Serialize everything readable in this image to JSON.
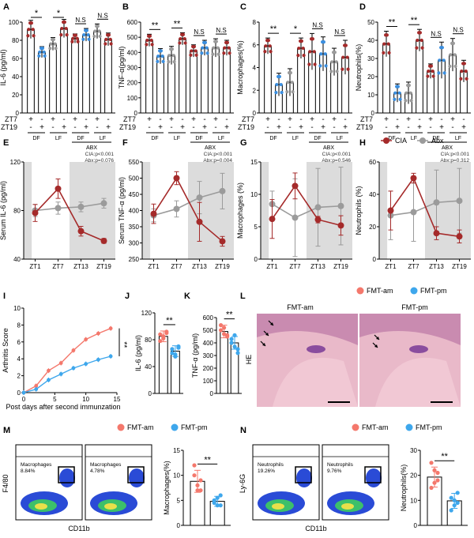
{
  "figure": {
    "panel_letters": [
      "A",
      "B",
      "C",
      "D",
      "E",
      "F",
      "G",
      "H",
      "I",
      "J",
      "K",
      "L",
      "M",
      "N"
    ]
  },
  "colors": {
    "red": "#a52a2a",
    "blue": "#3b8fe0",
    "gray": "#9b9b9b",
    "shade": "#dcdcdc",
    "fmt_am": "#f4786c",
    "fmt_pm": "#3ea7ec"
  },
  "legend_ciaabx": {
    "cia": "CIA",
    "abx": "Abx"
  },
  "legend_fmt": {
    "am": "FMT-am",
    "pm": "FMT-pm"
  },
  "sig": {
    "two": "**",
    "one": "*",
    "ns": "N.S"
  },
  "bar_rows": {
    "zt7": "ZT7",
    "zt19": "ZT19",
    "plus": "+",
    "minus": "-",
    "df": "DF",
    "lf": "LF",
    "abx": "ABX",
    "zt7_signs": [
      "+",
      "-",
      "+",
      "-",
      "+",
      "-",
      "+",
      "-"
    ],
    "zt19_signs": [
      "-",
      "+",
      "-",
      "+",
      "-",
      "+",
      "-",
      "+"
    ]
  },
  "chart_data": [
    {
      "panel": "A",
      "type": "bar",
      "ylabel": "IL-6 (pg/ml)",
      "ylim": [
        0,
        100
      ],
      "ticks": [
        0,
        20,
        40,
        60,
        80,
        100
      ],
      "values": [
        92,
        67,
        76,
        93,
        82,
        86,
        90,
        81
      ],
      "errors": [
        10,
        6,
        7,
        10,
        5,
        7,
        8,
        7
      ],
      "colors": [
        "red",
        "blue",
        "gray",
        "red",
        "red",
        "blue",
        "gray",
        "red"
      ],
      "sig": [
        {
          "a": 0,
          "b": 1,
          "label": "*"
        },
        {
          "a": 2,
          "b": 3,
          "label": "*"
        },
        {
          "a": 4,
          "b": 5,
          "label": "N.S"
        },
        {
          "a": 6,
          "b": 7,
          "label": "N.S"
        }
      ]
    },
    {
      "panel": "B",
      "type": "bar",
      "ylabel": "TNF-α(pg/ml)",
      "ylim": [
        0,
        600
      ],
      "ticks": [
        0,
        100,
        200,
        300,
        400,
        500,
        600
      ],
      "values": [
        480,
        375,
        380,
        490,
        410,
        430,
        430,
        430
      ],
      "errors": [
        40,
        50,
        60,
        40,
        40,
        50,
        60,
        50
      ],
      "colors": [
        "red",
        "blue",
        "gray",
        "red",
        "red",
        "blue",
        "gray",
        "red"
      ],
      "sig": [
        {
          "a": 0,
          "b": 1,
          "label": "**"
        },
        {
          "a": 2,
          "b": 3,
          "label": "**"
        },
        {
          "a": 4,
          "b": 5,
          "label": "N.S"
        },
        {
          "a": 6,
          "b": 7,
          "label": "N.S"
        }
      ]
    },
    {
      "panel": "C",
      "type": "bar",
      "ylabel": "Macrophages(%)",
      "ylim": [
        0,
        8
      ],
      "ticks": [
        0,
        2,
        4,
        6,
        8
      ],
      "values": [
        5.9,
        2.5,
        2.7,
        5.7,
        5.4,
        5.2,
        4.5,
        4.9
      ],
      "errors": [
        0.7,
        1.0,
        1.2,
        0.9,
        1.6,
        1.5,
        1.2,
        1.5
      ],
      "colors": [
        "red",
        "blue",
        "gray",
        "red",
        "red",
        "blue",
        "gray",
        "red"
      ],
      "sig": [
        {
          "a": 0,
          "b": 1,
          "label": "**"
        },
        {
          "a": 2,
          "b": 3,
          "label": "*"
        },
        {
          "a": 4,
          "b": 5,
          "label": "N.S"
        },
        {
          "a": 6,
          "b": 7,
          "label": "N.S"
        }
      ]
    },
    {
      "panel": "D",
      "type": "bar",
      "ylabel": "Neutrophils(%)",
      "ylim": [
        0,
        50
      ],
      "ticks": [
        0,
        10,
        20,
        30,
        40,
        50
      ],
      "values": [
        38,
        11,
        11,
        40,
        23,
        29,
        32,
        23
      ],
      "errors": [
        7,
        5,
        6,
        6,
        4,
        10,
        9,
        6
      ],
      "colors": [
        "red",
        "blue",
        "gray",
        "red",
        "red",
        "blue",
        "gray",
        "red"
      ],
      "sig": [
        {
          "a": 0,
          "b": 1,
          "label": "**"
        },
        {
          "a": 2,
          "b": 3,
          "label": "**"
        },
        {
          "a": 4,
          "b": 5,
          "label": "N.S"
        },
        {
          "a": 6,
          "b": 7,
          "label": "N.S"
        }
      ]
    },
    {
      "panel": "E",
      "type": "line",
      "ylabel": "Serum IL-6 (pg/ml)",
      "ylim": [
        40,
        120
      ],
      "ticks": [
        40,
        80,
        120
      ],
      "categories": [
        "ZT1",
        "ZT7",
        "ZT13",
        "ZT19"
      ],
      "series": [
        {
          "name": "CIA",
          "color": "red",
          "values": [
            78,
            98,
            63,
            55
          ],
          "errors": [
            7,
            8,
            4,
            2
          ]
        },
        {
          "name": "Abx",
          "color": "gray",
          "values": [
            80,
            82,
            83,
            86
          ],
          "errors": [
            5,
            5,
            4,
            4
          ]
        }
      ],
      "stats": [
        "CIA:p<0.001",
        "Abx:p=0.076"
      ]
    },
    {
      "panel": "F",
      "type": "line",
      "ylabel": "Serum TNF-α (pg/ml)",
      "ylim": [
        250,
        550
      ],
      "ticks": [
        250,
        300,
        350,
        400,
        450,
        500,
        550
      ],
      "categories": [
        "ZT1",
        "ZT7",
        "ZT13",
        "ZT19"
      ],
      "series": [
        {
          "name": "CIA",
          "color": "red",
          "values": [
            390,
            500,
            365,
            305
          ],
          "errors": [
            30,
            20,
            60,
            15
          ],
          "cap_only": [
            false,
            false,
            false,
            false
          ]
        },
        {
          "name": "Abx",
          "color": "gray",
          "values": [
            385,
            405,
            440,
            460
          ],
          "errors": [
            20,
            25,
            50,
            55
          ]
        }
      ],
      "stats": [
        "CIA:p<0.001",
        "Abx:p=0.004"
      ]
    },
    {
      "panel": "G",
      "type": "line",
      "ylabel": "Macrophages (%)",
      "ylim": [
        0,
        15
      ],
      "ticks": [
        0,
        5,
        10,
        15
      ],
      "categories": [
        "ZT1",
        "ZT7",
        "ZT13",
        "ZT19"
      ],
      "series": [
        {
          "name": "CIA",
          "color": "red",
          "values": [
            6.2,
            11.3,
            6.1,
            5.2
          ],
          "errors": [
            3,
            2,
            0.5,
            1.5
          ]
        },
        {
          "name": "Abx",
          "color": "gray",
          "values": [
            8.5,
            6.4,
            8.0,
            8.2
          ],
          "errors": [
            2,
            6,
            6,
            6
          ]
        }
      ],
      "stats": [
        "CIA:p<0.001",
        "Abx:p=0.546"
      ]
    },
    {
      "panel": "H",
      "type": "line",
      "ylabel": "Neutrophils (%)",
      "ylim": [
        0,
        60
      ],
      "ticks": [
        0,
        20,
        40,
        60
      ],
      "categories": [
        "ZT1",
        "ZT7",
        "ZT13",
        "ZT19"
      ],
      "series": [
        {
          "name": "CIA",
          "color": "red",
          "values": [
            30,
            50,
            16,
            14
          ],
          "errors": [
            12,
            3,
            4,
            4
          ]
        },
        {
          "name": "Abx",
          "color": "gray",
          "values": [
            27,
            29,
            35,
            36
          ],
          "errors": [
            15,
            18,
            20,
            20
          ]
        }
      ],
      "stats": [
        "CIA:p<0.001",
        "Abx:p=0.312"
      ]
    },
    {
      "panel": "I",
      "type": "line",
      "ylabel": "Arthritis Score",
      "xlabel": "Post days after second immunzation",
      "xlim": [
        0,
        15
      ],
      "ylim": [
        0,
        10
      ],
      "xticks": [
        0,
        5,
        10,
        15
      ],
      "yticks": [
        0,
        2,
        4,
        6,
        8,
        10
      ],
      "series": [
        {
          "name": "FMT-am",
          "color": "fmt_am",
          "x": [
            0,
            2,
            4,
            6,
            8,
            10,
            12,
            14
          ],
          "values": [
            0,
            0.8,
            2.6,
            3.5,
            5.0,
            6.3,
            7.0,
            7.6
          ]
        },
        {
          "name": "FMT-pm",
          "color": "fmt_pm",
          "x": [
            0,
            2,
            4,
            6,
            8,
            10,
            12,
            14
          ],
          "values": [
            0,
            0.4,
            1.5,
            2.2,
            2.9,
            3.4,
            3.9,
            4.3
          ]
        }
      ],
      "sig": "**"
    },
    {
      "panel": "J",
      "type": "bar",
      "ylabel": "IL-6 (pg/ml)",
      "ylim": [
        0,
        120
      ],
      "ticks": [
        0,
        40,
        80,
        120
      ],
      "categories": [
        "FMT-am",
        "FMT-pm"
      ],
      "values": [
        85,
        63
      ],
      "errors": [
        8,
        8
      ],
      "colors": [
        "fmt_am",
        "fmt_pm"
      ],
      "points": [
        [
          88,
          82,
          90,
          78,
          85,
          92
        ],
        [
          60,
          55,
          68,
          66,
          58,
          70
        ]
      ],
      "sig": "**"
    },
    {
      "panel": "K",
      "type": "bar",
      "ylabel": "TNF-α (pg/ml)",
      "ylim": [
        0,
        600
      ],
      "ticks": [
        0,
        100,
        200,
        300,
        400,
        500,
        600
      ],
      "categories": [
        "FMT-am",
        "FMT-pm"
      ],
      "values": [
        490,
        400
      ],
      "errors": [
        50,
        50
      ],
      "colors": [
        "fmt_am",
        "fmt_pm"
      ],
      "points": [
        [
          540,
          470,
          450,
          500,
          520,
          460
        ],
        [
          430,
          370,
          350,
          400,
          460,
          320
        ]
      ],
      "sig": "**"
    },
    {
      "panel": "M",
      "type": "bar",
      "ylabel": "Macrophages(%)",
      "ylim": [
        0,
        15
      ],
      "ticks": [
        0,
        5,
        10,
        15
      ],
      "categories": [
        "FMT-am",
        "FMT-pm"
      ],
      "values": [
        8.8,
        4.8
      ],
      "errors": [
        2.2,
        1.0
      ],
      "colors": [
        "fmt_am",
        "fmt_pm"
      ],
      "points": [
        [
          12,
          7,
          9,
          10,
          8,
          7
        ],
        [
          5,
          4,
          6,
          4.5,
          5.5,
          4
        ]
      ],
      "sig": "**"
    },
    {
      "panel": "N",
      "type": "bar",
      "ylabel": "Neutrophils(%)",
      "ylim": [
        0,
        30
      ],
      "ticks": [
        0,
        10,
        20,
        30
      ],
      "categories": [
        "FMT-am",
        "FMT-pm"
      ],
      "values": [
        19.3,
        9.8
      ],
      "errors": [
        4,
        3
      ],
      "colors": [
        "fmt_am",
        "fmt_pm"
      ],
      "points": [
        [
          25,
          17,
          21,
          15,
          22,
          18
        ],
        [
          11,
          8,
          13,
          6,
          10,
          9
        ]
      ],
      "sig": "**"
    }
  ],
  "panel_l": {
    "am": "FMT-am",
    "pm": "FMT-pm",
    "stain": "HE"
  },
  "flow": {
    "M": {
      "ylabel": "F4/80",
      "xlabel": "CD11b",
      "am_title": "FMT-am",
      "pm_title": "FMT-pm",
      "am_gate": "Macrophages",
      "am_pct": "8.84%",
      "pm_gate": "Macrophages",
      "pm_pct": "4.78%"
    },
    "N": {
      "ylabel": "Ly-6G",
      "xlabel": "CD11b",
      "am_title": "FMT-am",
      "pm_title": "FMT-pm",
      "am_gate": "Neutrophils",
      "am_pct": "19.26%",
      "pm_gate": "Neutrophils",
      "pm_pct": "9.76%"
    }
  }
}
